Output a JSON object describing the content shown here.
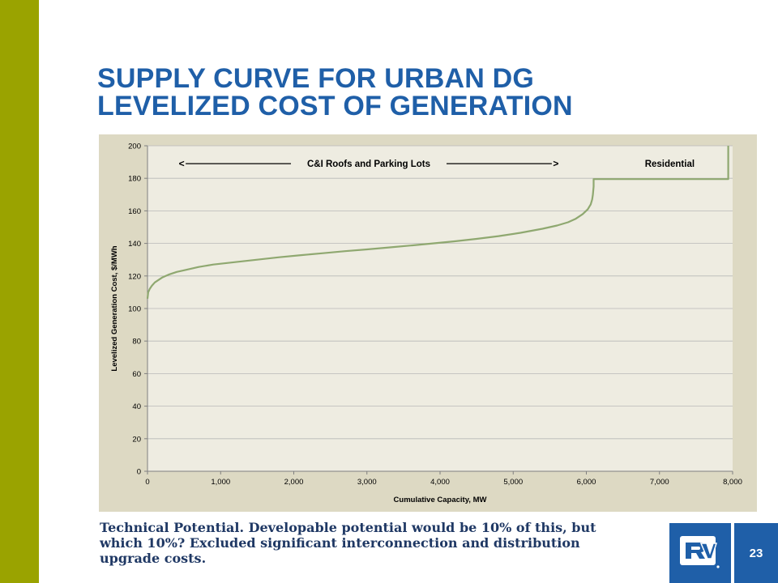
{
  "slide": {
    "title_line1": "SUPPLY CURVE FOR URBAN DG",
    "title_line2": "LEVELIZED COST OF GENERATION",
    "caption_line1": "Technical Potential.  Developable potential would be 10% of this, but",
    "caption_line2": "which 10%?  Excluded significant interconnection and distribution",
    "caption_line3": "upgrade costs.",
    "page_number": "23",
    "colors": {
      "left_bar": "#9aa300",
      "title": "#1f5fa8",
      "chart_background": "#ddd9c3",
      "plot_background": "#eeece1",
      "curve": "#8fa870",
      "caption": "#1f3864",
      "footer_box": "#1f5fa8"
    },
    "logo_icon": "rv-logo-icon"
  },
  "chart_data": {
    "type": "line",
    "xlabel": "Cumulative Capacity, MW",
    "ylabel": "Levelized Generation Cost, $/MWh",
    "xlim": [
      0,
      8000
    ],
    "ylim": [
      0,
      200
    ],
    "x_ticks": [
      0,
      1000,
      2000,
      3000,
      4000,
      5000,
      6000,
      7000,
      8000
    ],
    "x_tick_labels": [
      "0",
      "1,000",
      "2,000",
      "3,000",
      "4,000",
      "5,000",
      "6,000",
      "7,000",
      "8,000"
    ],
    "y_ticks": [
      0,
      20,
      40,
      60,
      80,
      100,
      120,
      140,
      160,
      180,
      200
    ],
    "y_tick_labels": [
      "0",
      "20",
      "40",
      "60",
      "80",
      "100",
      "120",
      "140",
      "160",
      "180",
      "200"
    ],
    "grid": "horizontal",
    "annotations": [
      {
        "text": "C&I Roofs and Parking Lots",
        "arrow_left": "<",
        "arrow_right": ">",
        "x_from": 500,
        "x_to": 5550,
        "y": 189
      },
      {
        "text": "Residential",
        "x": 6800,
        "y": 189
      }
    ],
    "series": [
      {
        "x": [
          0,
          10,
          30,
          60,
          100,
          150,
          200,
          300,
          400,
          500,
          700,
          900,
          1100,
          1300,
          1500,
          1800,
          2100,
          2400,
          2700,
          3000,
          3300,
          3600,
          3900,
          4200,
          4500,
          4800,
          5100,
          5400,
          5600,
          5750,
          5850,
          5950,
          6020,
          6060,
          6080,
          6090,
          6100,
          6100,
          7940,
          7940
        ],
        "y": [
          106,
          110,
          112,
          114,
          116,
          117.5,
          119,
          121,
          122.5,
          123.5,
          125.5,
          127,
          128,
          129,
          130,
          131.5,
          132.8,
          134,
          135.2,
          136.3,
          137.5,
          138.7,
          140,
          141.3,
          142.8,
          144.5,
          146.5,
          149,
          151,
          153,
          155,
          158,
          161,
          164,
          167,
          170,
          175,
          179.5,
          179.5,
          200
        ]
      }
    ]
  }
}
